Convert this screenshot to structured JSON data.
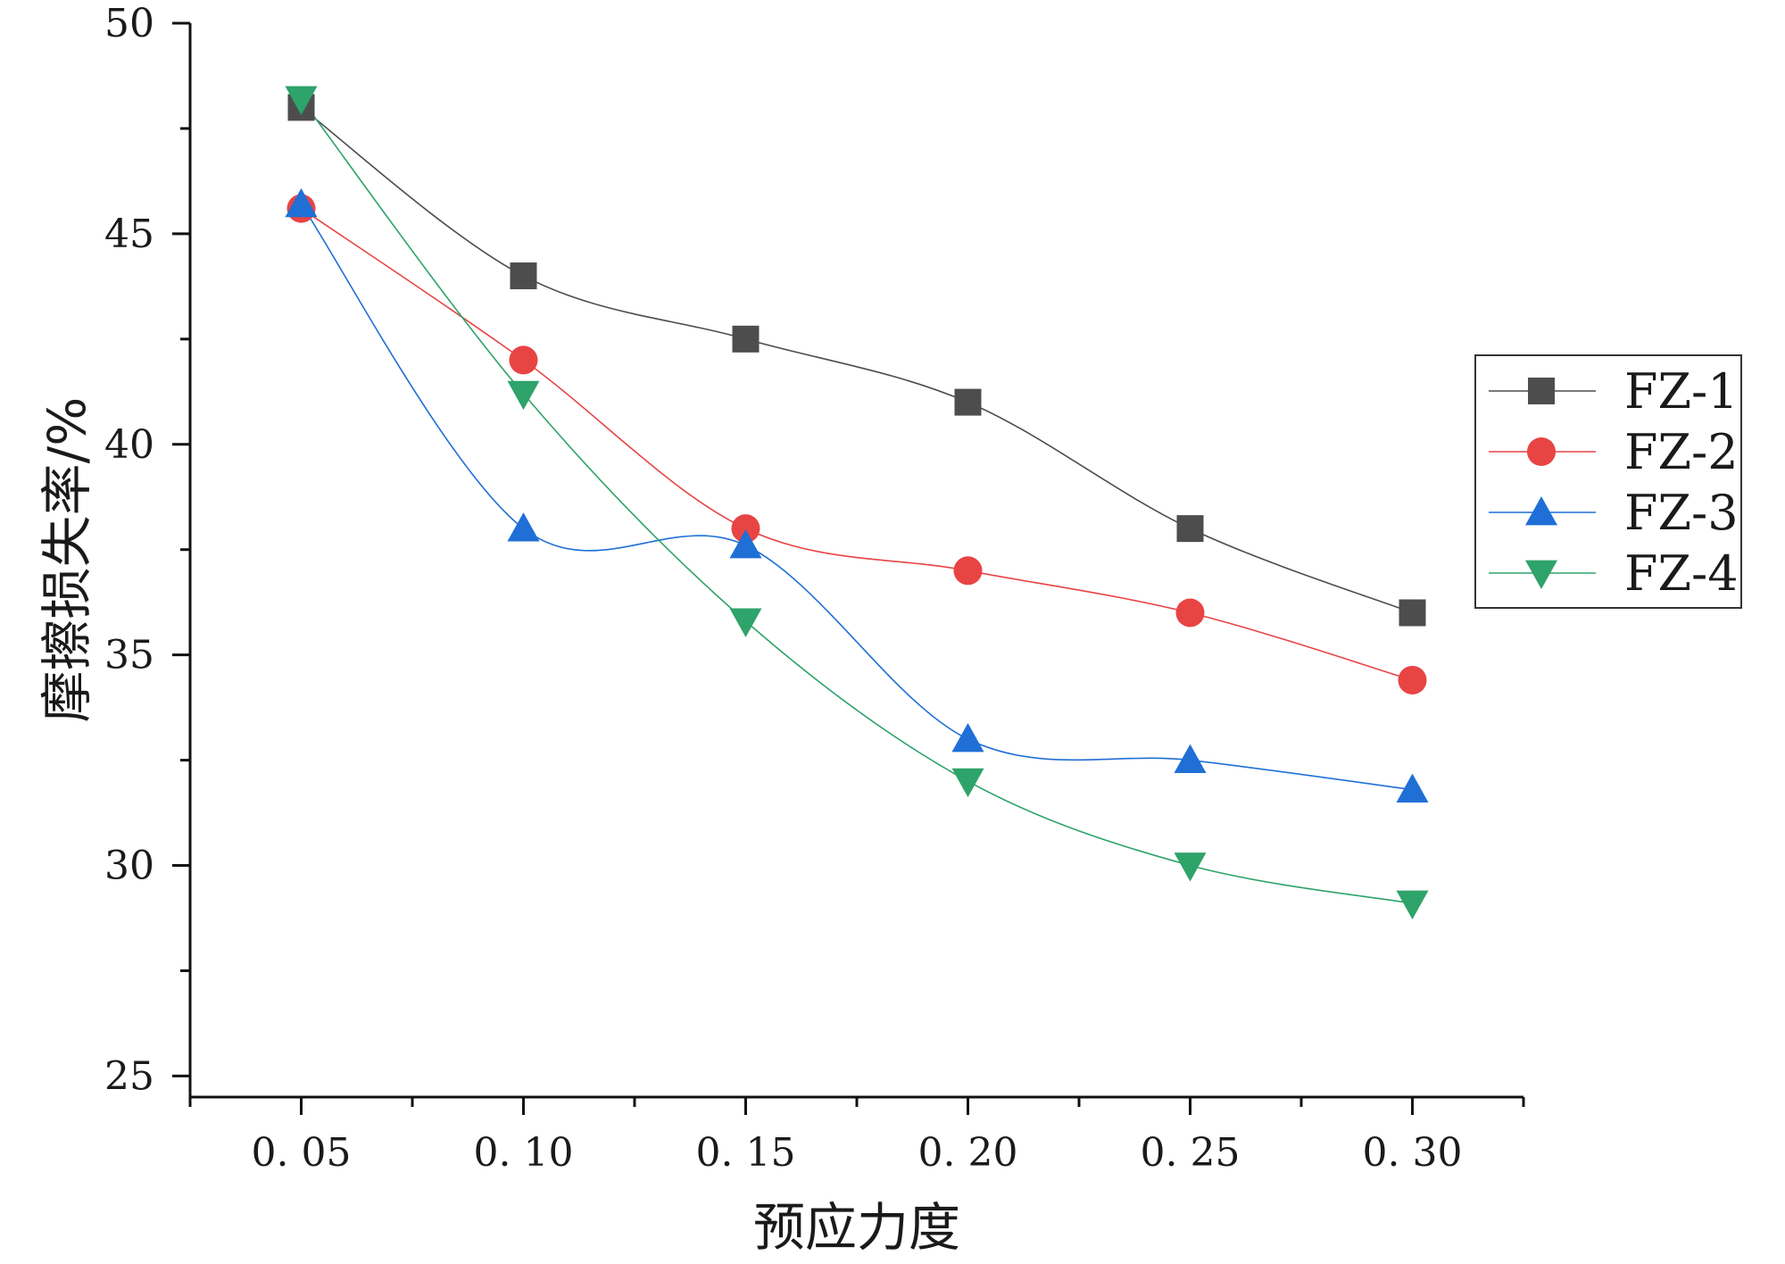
{
  "chart_data": {
    "type": "line",
    "title": "",
    "xlabel": "预应力度",
    "ylabel": "摩擦损失率/%",
    "x": [
      0.05,
      0.1,
      0.15,
      0.2,
      0.25,
      0.3
    ],
    "x_tick_labels": [
      "0. 05",
      "0. 10",
      "0. 15",
      "0. 20",
      "0. 25",
      "0. 30"
    ],
    "xlim": [
      0.025,
      0.325
    ],
    "ylim": [
      24.5,
      50
    ],
    "y_ticks": [
      25,
      30,
      35,
      40,
      45,
      50
    ],
    "y_tick_labels": [
      "25",
      "30",
      "35",
      "40",
      "45",
      "50"
    ],
    "grid": false,
    "legend_position": "right",
    "series": [
      {
        "name": "FZ-1",
        "marker": "square",
        "color": "#4d4d4d",
        "values": [
          48.0,
          44.0,
          42.5,
          41.0,
          38.0,
          36.0
        ]
      },
      {
        "name": "FZ-2",
        "marker": "circle",
        "color": "#e84444",
        "values": [
          45.6,
          42.0,
          38.0,
          37.0,
          36.0,
          34.4
        ]
      },
      {
        "name": "FZ-3",
        "marker": "triangle-up",
        "color": "#1f6fd6",
        "values": [
          45.7,
          38.0,
          37.6,
          33.0,
          32.5,
          31.8
        ]
      },
      {
        "name": "FZ-4",
        "marker": "triangle-down",
        "color": "#2ea36a",
        "values": [
          48.2,
          41.2,
          35.8,
          32.0,
          30.0,
          29.1
        ]
      }
    ]
  }
}
